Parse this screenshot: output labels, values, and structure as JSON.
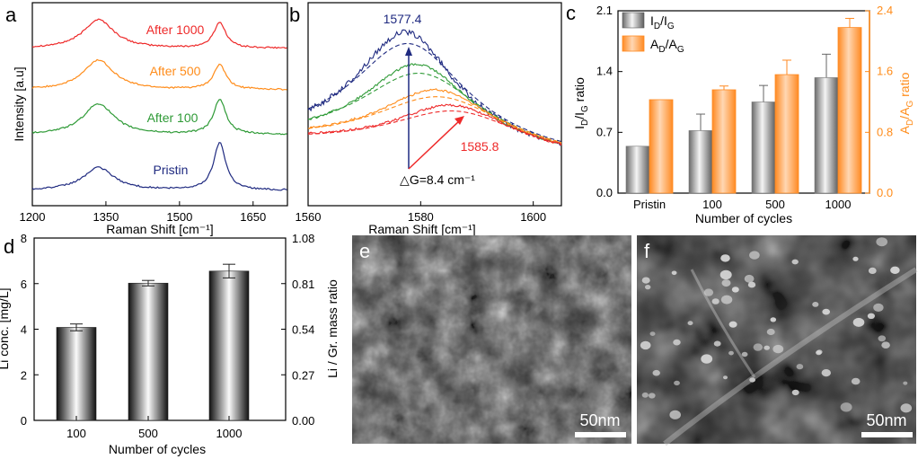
{
  "panels": {
    "a": "a",
    "b": "b",
    "c": "c",
    "d": "d",
    "e": "e",
    "f": "f"
  },
  "colors": {
    "pristine": "#1f2a80",
    "c100": "#2e9a36",
    "c500": "#ff8c1a",
    "c1000": "#ee2a2a",
    "bar_orange": "#ff8a22",
    "axis_right": "#ff8c1a"
  },
  "chart_data": [
    {
      "id": "a",
      "type": "line",
      "xlabel": "Raman Shift [cm⁻¹]",
      "ylabel": "Intensity [a.u]",
      "xlim": [
        1200,
        1720
      ],
      "xticks": [
        1200,
        1350,
        1500,
        1650
      ],
      "xtick_labels": [
        "1200",
        "1350",
        "1500",
        "1650"
      ],
      "series": [
        {
          "name": "After 1000",
          "color": "#ee2a2a",
          "offset": 3.0,
          "d_height": 0.7,
          "g_height": 0.62
        },
        {
          "name": "After 500",
          "color": "#ff8c1a",
          "offset": 2.0,
          "d_height": 0.72,
          "g_height": 0.6
        },
        {
          "name": "After 100",
          "color": "#2e9a36",
          "offset": 1.0,
          "d_height": 0.75,
          "g_height": 0.85
        },
        {
          "name": "Pristin",
          "color": "#1f2a80",
          "offset": 0.0,
          "d_height": 0.55,
          "g_height": 1.15
        }
      ]
    },
    {
      "id": "b",
      "type": "line",
      "xlabel": "Raman Shift [cm⁻¹]",
      "xlim": [
        1560,
        1605
      ],
      "xticks": [
        1560,
        1580,
        1600
      ],
      "xtick_labels": [
        "1560",
        "1580",
        "1600"
      ],
      "annotations": {
        "peak_pristine": "1577.4",
        "peak_cycled": "1585.8",
        "shift": "△G=8.4 cm⁻¹"
      }
    },
    {
      "id": "c",
      "type": "bar",
      "categories": [
        "Pristin",
        "100",
        "500",
        "1000"
      ],
      "xlabel": "Number of cycles",
      "ylabel_left": "I_D/I_G ratio",
      "ylabel_right": "A_D/A_G ratio",
      "ylim_left": [
        0,
        2.1
      ],
      "yticks_left": [
        0.0,
        0.7,
        1.4,
        2.1
      ],
      "ytick_labels_left": [
        "0.0",
        "0.7",
        "1.4",
        "2.1"
      ],
      "ylim_right": [
        0,
        2.4
      ],
      "yticks_right": [
        0.0,
        0.8,
        1.6,
        2.4
      ],
      "ytick_labels_right": [
        "0.0",
        "0.8",
        "1.6",
        "2.4"
      ],
      "series": [
        {
          "name": "I_D/I_G",
          "axis": "left",
          "values": [
            0.54,
            0.72,
            1.05,
            1.33
          ],
          "errors": [
            0,
            0.19,
            0.19,
            0.27
          ]
        },
        {
          "name": "A_D/A_G",
          "axis": "right",
          "values": [
            1.23,
            1.36,
            1.56,
            2.18
          ],
          "errors": [
            0,
            0.05,
            0.19,
            0.12
          ]
        }
      ],
      "legend": [
        "I_D/I_G",
        "A_D/A_G"
      ]
    },
    {
      "id": "d",
      "type": "bar",
      "categories": [
        "100",
        "500",
        "1000"
      ],
      "xlabel": "Number of cycles",
      "ylabel_left": "Li conc. [mg/L]",
      "ylabel_right": "Li / Gr. mass ratio",
      "ylim_left": [
        0,
        8
      ],
      "yticks_left": [
        0,
        2,
        4,
        6,
        8
      ],
      "ytick_labels_left": [
        "0",
        "2",
        "4",
        "6",
        "8"
      ],
      "ylim_right": [
        0,
        1.08
      ],
      "yticks_right": [
        0.0,
        0.27,
        0.54,
        0.81,
        1.08
      ],
      "ytick_labels_right": [
        "0.00",
        "0.27",
        "0.54",
        "0.81",
        "1.08"
      ],
      "series": [
        {
          "name": "Li conc.",
          "values": [
            4.08,
            6.02,
            6.55
          ],
          "errors": [
            0.15,
            0.12,
            0.3
          ]
        }
      ]
    }
  ],
  "sem": {
    "e": {
      "scale_label": "50nm"
    },
    "f": {
      "scale_label": "50nm"
    }
  }
}
